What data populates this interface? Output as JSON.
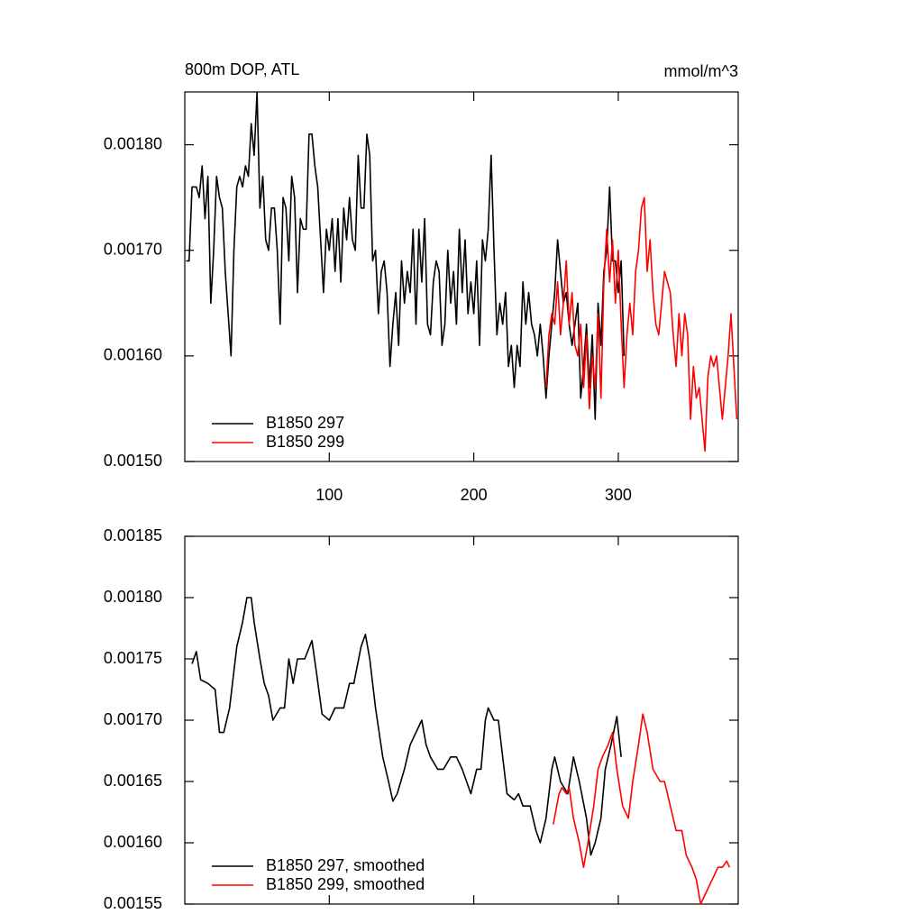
{
  "chart_data": [
    {
      "type": "line",
      "title": "800m DOP, ATL",
      "right_title": "mmol/m^3",
      "xlim": [
        0,
        383
      ],
      "xticks": [
        100,
        200,
        300
      ],
      "ylim": [
        0.0015,
        0.00185
      ],
      "yticks": [
        {
          "value": 0.0015,
          "label": "0.00150"
        },
        {
          "value": 0.0016,
          "label": "0.00160"
        },
        {
          "value": 0.0017,
          "label": "0.00170"
        },
        {
          "value": 0.0018,
          "label": "0.00180"
        }
      ],
      "legend": "lower left",
      "series": [
        {
          "name": "B1850 297",
          "color": "#000000",
          "x": [
            1,
            3,
            5,
            8,
            10,
            12,
            14,
            16,
            18,
            20,
            22,
            24,
            26,
            28,
            30,
            32,
            34,
            36,
            38,
            40,
            42,
            44,
            46,
            48,
            50,
            52,
            54,
            56,
            58,
            60,
            62,
            64,
            66,
            68,
            70,
            72,
            74,
            76,
            78,
            80,
            82,
            84,
            86,
            88,
            90,
            92,
            94,
            96,
            98,
            100,
            102,
            104,
            106,
            108,
            110,
            112,
            114,
            116,
            118,
            120,
            122,
            124,
            126,
            128,
            130,
            132,
            134,
            136,
            138,
            140,
            142,
            144,
            146,
            148,
            150,
            152,
            154,
            156,
            158,
            160,
            162,
            164,
            166,
            168,
            170,
            172,
            174,
            176,
            178,
            180,
            182,
            184,
            186,
            188,
            190,
            192,
            194,
            196,
            198,
            200,
            202,
            204,
            206,
            208,
            210,
            212,
            214,
            216,
            218,
            220,
            222,
            224,
            226,
            228,
            230,
            232,
            234,
            236,
            238,
            240,
            242,
            244,
            246,
            248,
            250,
            252,
            254,
            256,
            258,
            260,
            262,
            264,
            266,
            268,
            270,
            272,
            274,
            276,
            278,
            280,
            282,
            284,
            286,
            288,
            290,
            292,
            294,
            296,
            298,
            300,
            302,
            304
          ],
          "values": [
            0.00169,
            0.00169,
            0.00176,
            0.00176,
            0.00175,
            0.00178,
            0.00173,
            0.00177,
            0.00165,
            0.0017,
            0.00177,
            0.00175,
            0.00174,
            0.00168,
            0.00164,
            0.0016,
            0.0017,
            0.00176,
            0.00177,
            0.00176,
            0.00178,
            0.00177,
            0.00182,
            0.00179,
            0.00185,
            0.00174,
            0.00177,
            0.00171,
            0.0017,
            0.00174,
            0.00174,
            0.0017,
            0.00163,
            0.00175,
            0.00174,
            0.00169,
            0.00177,
            0.00175,
            0.00166,
            0.00173,
            0.00172,
            0.00172,
            0.00181,
            0.00181,
            0.00178,
            0.00176,
            0.00171,
            0.00166,
            0.00172,
            0.0017,
            0.00173,
            0.00168,
            0.00173,
            0.00167,
            0.00174,
            0.00171,
            0.00175,
            0.00171,
            0.0017,
            0.00179,
            0.00174,
            0.00174,
            0.00181,
            0.00179,
            0.00169,
            0.0017,
            0.00164,
            0.00168,
            0.00169,
            0.00166,
            0.00159,
            0.00163,
            0.00166,
            0.00161,
            0.00169,
            0.00165,
            0.00168,
            0.00166,
            0.00172,
            0.00163,
            0.00172,
            0.00167,
            0.00173,
            0.00163,
            0.00162,
            0.00167,
            0.00169,
            0.00168,
            0.00161,
            0.00163,
            0.0017,
            0.00165,
            0.00168,
            0.00163,
            0.00172,
            0.00166,
            0.00171,
            0.00164,
            0.00167,
            0.00164,
            0.00169,
            0.00161,
            0.00171,
            0.00169,
            0.00172,
            0.00179,
            0.0017,
            0.00162,
            0.00165,
            0.00163,
            0.00166,
            0.00159,
            0.00161,
            0.00157,
            0.00161,
            0.00159,
            0.00167,
            0.00163,
            0.00166,
            0.00163,
            0.00162,
            0.0016,
            0.00163,
            0.0016,
            0.00156,
            0.0016,
            0.00163,
            0.00166,
            0.00171,
            0.00168,
            0.00165,
            0.00166,
            0.00163,
            0.00161,
            0.00163,
            0.00165,
            0.00156,
            0.00159,
            0.00163,
            0.00157,
            0.00162,
            0.00154,
            0.00165,
            0.00161,
            0.00168,
            0.0017,
            0.00176,
            0.00169,
            0.00169,
            0.00166,
            0.00169,
            0.0016
          ]
        },
        {
          "name": "B1850 299",
          "color": "#ff0000",
          "x": [
            250,
            252,
            254,
            256,
            258,
            260,
            262,
            264,
            266,
            268,
            270,
            272,
            274,
            276,
            278,
            280,
            282,
            284,
            286,
            288,
            290,
            292,
            294,
            296,
            298,
            300,
            302,
            304,
            306,
            308,
            310,
            312,
            314,
            316,
            318,
            320,
            322,
            324,
            326,
            328,
            330,
            332,
            334,
            336,
            338,
            340,
            342,
            344,
            346,
            348,
            350,
            352,
            354,
            356,
            358,
            360,
            362,
            364,
            366,
            368,
            370,
            372,
            374,
            376,
            378,
            380,
            382
          ],
          "values": [
            0.00157,
            0.00162,
            0.00164,
            0.00163,
            0.00167,
            0.00162,
            0.00165,
            0.00169,
            0.00163,
            0.00166,
            0.00161,
            0.0016,
            0.00163,
            0.00157,
            0.00162,
            0.00155,
            0.0016,
            0.00157,
            0.00164,
            0.00156,
            0.00167,
            0.00172,
            0.00167,
            0.00171,
            0.00165,
            0.0017,
            0.00163,
            0.00157,
            0.00162,
            0.00165,
            0.00162,
            0.00168,
            0.0017,
            0.00174,
            0.00175,
            0.00168,
            0.00171,
            0.00166,
            0.00163,
            0.00162,
            0.00165,
            0.00168,
            0.00167,
            0.00166,
            0.00162,
            0.00159,
            0.00164,
            0.0016,
            0.00164,
            0.00162,
            0.00154,
            0.00159,
            0.00156,
            0.00157,
            0.00154,
            0.00151,
            0.00158,
            0.0016,
            0.00159,
            0.0016,
            0.00157,
            0.00154,
            0.00157,
            0.0016,
            0.00164,
            0.00159,
            0.00154
          ]
        }
      ]
    },
    {
      "type": "line",
      "xlim": [
        0,
        383
      ],
      "xticks": [
        100,
        200,
        300
      ],
      "ylim": [
        0.00155,
        0.00185
      ],
      "yticks": [
        {
          "value": 0.00155,
          "label": "0.00155"
        },
        {
          "value": 0.0016,
          "label": "0.00160"
        },
        {
          "value": 0.00165,
          "label": "0.00165"
        },
        {
          "value": 0.0017,
          "label": "0.00170"
        },
        {
          "value": 0.00175,
          "label": "0.00175"
        },
        {
          "value": 0.0018,
          "label": "0.00180"
        },
        {
          "value": 0.00185,
          "label": "0.00185"
        }
      ],
      "legend": "lower left",
      "series": [
        {
          "name": "B1850 297, smoothed",
          "color": "#000000",
          "x": [
            5,
            8,
            11,
            16,
            21,
            24,
            27,
            31,
            36,
            40,
            43,
            46,
            48,
            52,
            55,
            58,
            61,
            66,
            69,
            72,
            75,
            78,
            83,
            88,
            91,
            95,
            100,
            104,
            110,
            114,
            117,
            122,
            125,
            128,
            132,
            137,
            141,
            144,
            147,
            152,
            156,
            160,
            164,
            167,
            170,
            175,
            179,
            184,
            188,
            192,
            195,
            198,
            202,
            205,
            208,
            210,
            214,
            217,
            220,
            223,
            228,
            231,
            234,
            239,
            243,
            246,
            250,
            254,
            256,
            260,
            265,
            269,
            273,
            278,
            281,
            284,
            288,
            291,
            295,
            299,
            302
          ],
          "values": [
            0.001746,
            0.001756,
            0.001733,
            0.00173,
            0.001725,
            0.00169,
            0.00169,
            0.00171,
            0.00176,
            0.00178,
            0.0018,
            0.0018,
            0.00178,
            0.00175,
            0.00173,
            0.00172,
            0.0017,
            0.00171,
            0.00171,
            0.00175,
            0.00173,
            0.00175,
            0.00175,
            0.001765,
            0.00174,
            0.001705,
            0.0017,
            0.00171,
            0.00171,
            0.00173,
            0.00173,
            0.00176,
            0.00177,
            0.00175,
            0.00171,
            0.00167,
            0.00165,
            0.001634,
            0.00164,
            0.00166,
            0.00168,
            0.00169,
            0.0017,
            0.00168,
            0.00167,
            0.00166,
            0.00166,
            0.00167,
            0.00167,
            0.00166,
            0.00165,
            0.00164,
            0.00166,
            0.00166,
            0.0017,
            0.00171,
            0.0017,
            0.0017,
            0.00167,
            0.00164,
            0.001635,
            0.00164,
            0.00163,
            0.00163,
            0.00161,
            0.0016,
            0.00162,
            0.00166,
            0.00167,
            0.00165,
            0.00164,
            0.00167,
            0.00165,
            0.00162,
            0.00159,
            0.0016,
            0.00162,
            0.00166,
            0.00168,
            0.001703,
            0.00167
          ]
        },
        {
          "name": "B1850 299, smoothed",
          "color": "#ff0000",
          "x": [
            255,
            259,
            261,
            264,
            266,
            269,
            273,
            276,
            279,
            283,
            286,
            289,
            293,
            296,
            299,
            303,
            307,
            310,
            314,
            317,
            320,
            324,
            329,
            332,
            336,
            340,
            344,
            347,
            351,
            354,
            357,
            361,
            365,
            369,
            372,
            375,
            377
          ],
          "values": [
            0.001615,
            0.00164,
            0.001645,
            0.00164,
            0.001645,
            0.00162,
            0.0016,
            0.00158,
            0.0016,
            0.00163,
            0.00166,
            0.00167,
            0.00168,
            0.00169,
            0.00166,
            0.00163,
            0.00162,
            0.00165,
            0.00168,
            0.001705,
            0.00169,
            0.00166,
            0.00165,
            0.00165,
            0.00163,
            0.00161,
            0.00161,
            0.00159,
            0.00158,
            0.00157,
            0.00155,
            0.00156,
            0.00157,
            0.00158,
            0.00158,
            0.001585,
            0.00158
          ]
        }
      ]
    }
  ]
}
